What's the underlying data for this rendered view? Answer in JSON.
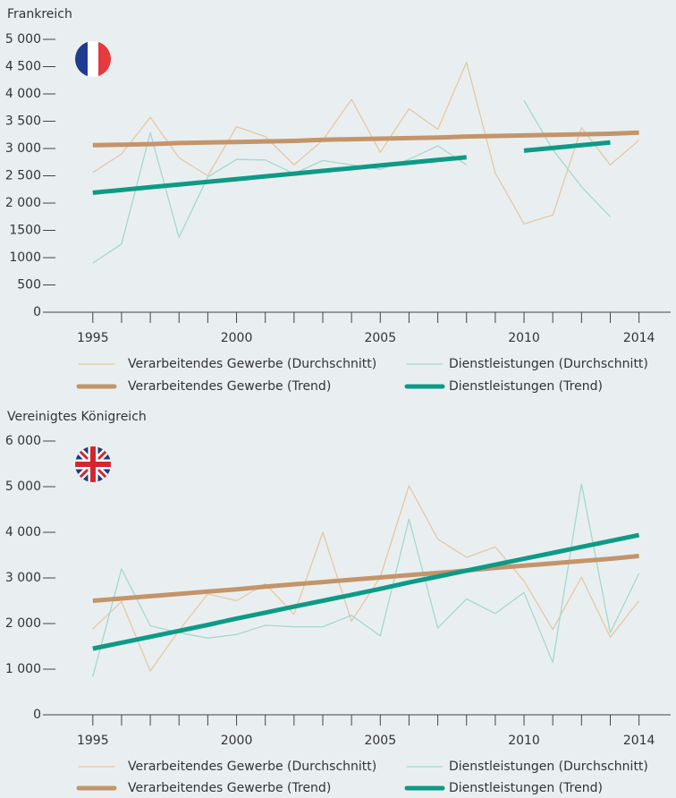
{
  "chart_data": [
    {
      "type": "line",
      "title": "Frankreich",
      "x": [
        1995,
        1996,
        1997,
        1998,
        1999,
        2000,
        2001,
        2002,
        2003,
        2004,
        2005,
        2006,
        2007,
        2008,
        2009,
        2010,
        2011,
        2012,
        2013,
        2014
      ],
      "xlim": [
        1993.7,
        2015.1
      ],
      "xticks": [
        1995,
        2000,
        2005,
        2010,
        2014
      ],
      "ylim": [
        0,
        5000
      ],
      "yticks": [
        0,
        500,
        1000,
        1500,
        {
          "value": 2000,
          "label": "2 000"
        },
        {
          "value": 2500,
          "label": "2 500"
        },
        {
          "value": 3000,
          "label": "3 000"
        },
        {
          "value": 3500,
          "label": "3 500"
        },
        {
          "value": 4000,
          "label": "4 000"
        },
        {
          "value": 4500,
          "label": "4 500"
        },
        {
          "value": 5000,
          "label": "5 000"
        }
      ],
      "legend": "bottom",
      "series": [
        {
          "name": "Verarbeitendes Gewerbe (Durchschnitt)",
          "color": "#e6c7a6",
          "width": 1.3,
          "values": [
            2560,
            2900,
            3570,
            2830,
            2500,
            3400,
            3220,
            2700,
            3150,
            3900,
            2930,
            3730,
            3350,
            4580,
            2550,
            1620,
            1780,
            3380,
            2700,
            3150
          ]
        },
        {
          "name": "Dienstleistungen (Durchschnitt)",
          "color": "#a5d8cf",
          "width": 1.3,
          "values": [
            900,
            1250,
            3290,
            1370,
            2480,
            2800,
            2790,
            2540,
            2780,
            2700,
            2620,
            2800,
            3050,
            2700,
            null,
            3880,
            2980,
            2300,
            1750,
            null
          ]
        },
        {
          "name": "Verarbeitendes Gewerbe (Trend)",
          "color": "#c4946a",
          "width": 5,
          "values": [
            3060,
            3070,
            3080,
            3100,
            3110,
            3120,
            3130,
            3140,
            3160,
            3170,
            3180,
            3190,
            3200,
            3220,
            3230,
            3240,
            3250,
            3260,
            3270,
            3290
          ]
        },
        {
          "name": "Dienstleistungen (Trend)",
          "color": "#0d9a86",
          "width": 5,
          "values": [
            2190,
            2240,
            2290,
            2340,
            2390,
            2440,
            2490,
            2540,
            2590,
            2640,
            2690,
            2740,
            2790,
            2840,
            null,
            2960,
            3010,
            3060,
            3110,
            null
          ]
        }
      ]
    },
    {
      "type": "line",
      "title": "Vereinigtes Königreich",
      "x": [
        1995,
        1996,
        1997,
        1998,
        1999,
        2000,
        2001,
        2002,
        2003,
        2004,
        2005,
        2006,
        2007,
        2008,
        2009,
        2010,
        2011,
        2012,
        2013,
        2014
      ],
      "xlim": [
        1993.7,
        2015.1
      ],
      "xticks": [
        1995,
        2000,
        2005,
        2010,
        2014
      ],
      "ylim": [
        0,
        6000
      ],
      "yticks": [
        0,
        {
          "value": 1000,
          "label": "1 000"
        },
        {
          "value": 2000,
          "label": "2 000"
        },
        {
          "value": 3000,
          "label": "3 000"
        },
        {
          "value": 4000,
          "label": "4 000"
        },
        {
          "value": 5000,
          "label": "5 000"
        },
        {
          "value": 6000,
          "label": "6 000"
        }
      ],
      "legend": "bottom",
      "series": [
        {
          "name": "Verarbeitendes Gewerbe (Durchschnitt)",
          "color": "#e6c7a6",
          "width": 1.3,
          "values": [
            1880,
            2480,
            960,
            1850,
            2650,
            2500,
            2870,
            2200,
            4000,
            2050,
            3020,
            5020,
            3850,
            3450,
            3680,
            2930,
            1870,
            3020,
            1700,
            2500
          ]
        },
        {
          "name": "Dienstleistungen (Durchschnitt)",
          "color": "#a5d8cf",
          "width": 1.3,
          "values": [
            840,
            3200,
            1950,
            1800,
            1680,
            1760,
            1960,
            1930,
            1930,
            2180,
            1730,
            4290,
            1900,
            2540,
            2220,
            2680,
            1150,
            5060,
            1800,
            3100
          ]
        },
        {
          "name": "Verarbeitendes Gewerbe (Trend)",
          "color": "#c4946a",
          "width": 5,
          "values": [
            2500,
            2550,
            2600,
            2650,
            2700,
            2750,
            2810,
            2860,
            2910,
            2960,
            3010,
            3060,
            3110,
            3160,
            3220,
            3270,
            3320,
            3370,
            3420,
            3480
          ]
        },
        {
          "name": "Dienstleistungen (Trend)",
          "color": "#0d9a86",
          "width": 5,
          "values": [
            1450,
            1580,
            1710,
            1840,
            1970,
            2110,
            2240,
            2370,
            2500,
            2630,
            2760,
            2900,
            3030,
            3160,
            3290,
            3420,
            3550,
            3680,
            3810,
            3940
          ]
        }
      ]
    }
  ]
}
